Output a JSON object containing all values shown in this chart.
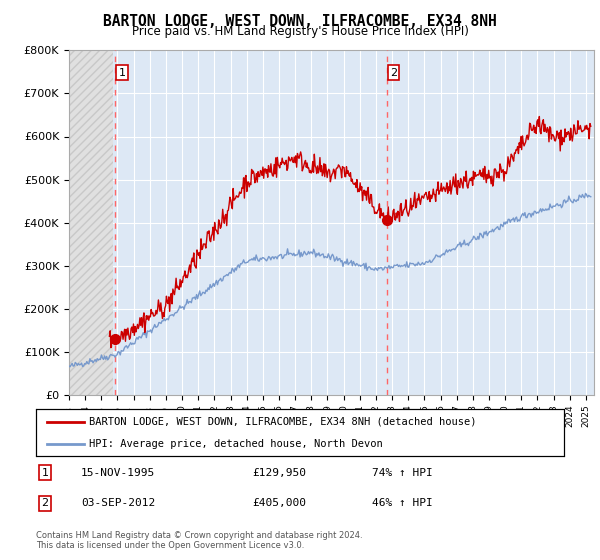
{
  "title": "BARTON LODGE, WEST DOWN, ILFRACOMBE, EX34 8NH",
  "subtitle": "Price paid vs. HM Land Registry's House Price Index (HPI)",
  "ylabel_ticks": [
    "£0",
    "£100K",
    "£200K",
    "£300K",
    "£400K",
    "£500K",
    "£600K",
    "£700K",
    "£800K"
  ],
  "ytick_values": [
    0,
    100000,
    200000,
    300000,
    400000,
    500000,
    600000,
    700000,
    800000
  ],
  "ylim": [
    0,
    800000
  ],
  "xlim_start": 1993.0,
  "xlim_end": 2025.5,
  "hatch_end": 1995.7,
  "sale1_x": 1995.87,
  "sale1_y": 129950,
  "sale1_label": "1",
  "sale2_x": 2012.67,
  "sale2_y": 405000,
  "sale2_label": "2",
  "property_color": "#cc0000",
  "hpi_color": "#7799cc",
  "vline_color": "#ff6666",
  "plot_bg_color": "#dde8f5",
  "hatch_color": "#c8c8c8",
  "hatch_face": "#e0e0e0",
  "legend_property": "BARTON LODGE, WEST DOWN, ILFRACOMBE, EX34 8NH (detached house)",
  "legend_hpi": "HPI: Average price, detached house, North Devon",
  "table_row1": [
    "1",
    "15-NOV-1995",
    "£129,950",
    "74% ↑ HPI"
  ],
  "table_row2": [
    "2",
    "03-SEP-2012",
    "£405,000",
    "46% ↑ HPI"
  ],
  "footer": "Contains HM Land Registry data © Crown copyright and database right 2024.\nThis data is licensed under the Open Government Licence v3.0.",
  "xtick_years": [
    1993,
    1994,
    1995,
    1996,
    1997,
    1998,
    1999,
    2000,
    2001,
    2002,
    2003,
    2004,
    2005,
    2006,
    2007,
    2008,
    2009,
    2010,
    2011,
    2012,
    2013,
    2014,
    2015,
    2016,
    2017,
    2018,
    2019,
    2020,
    2021,
    2022,
    2023,
    2024,
    2025
  ]
}
